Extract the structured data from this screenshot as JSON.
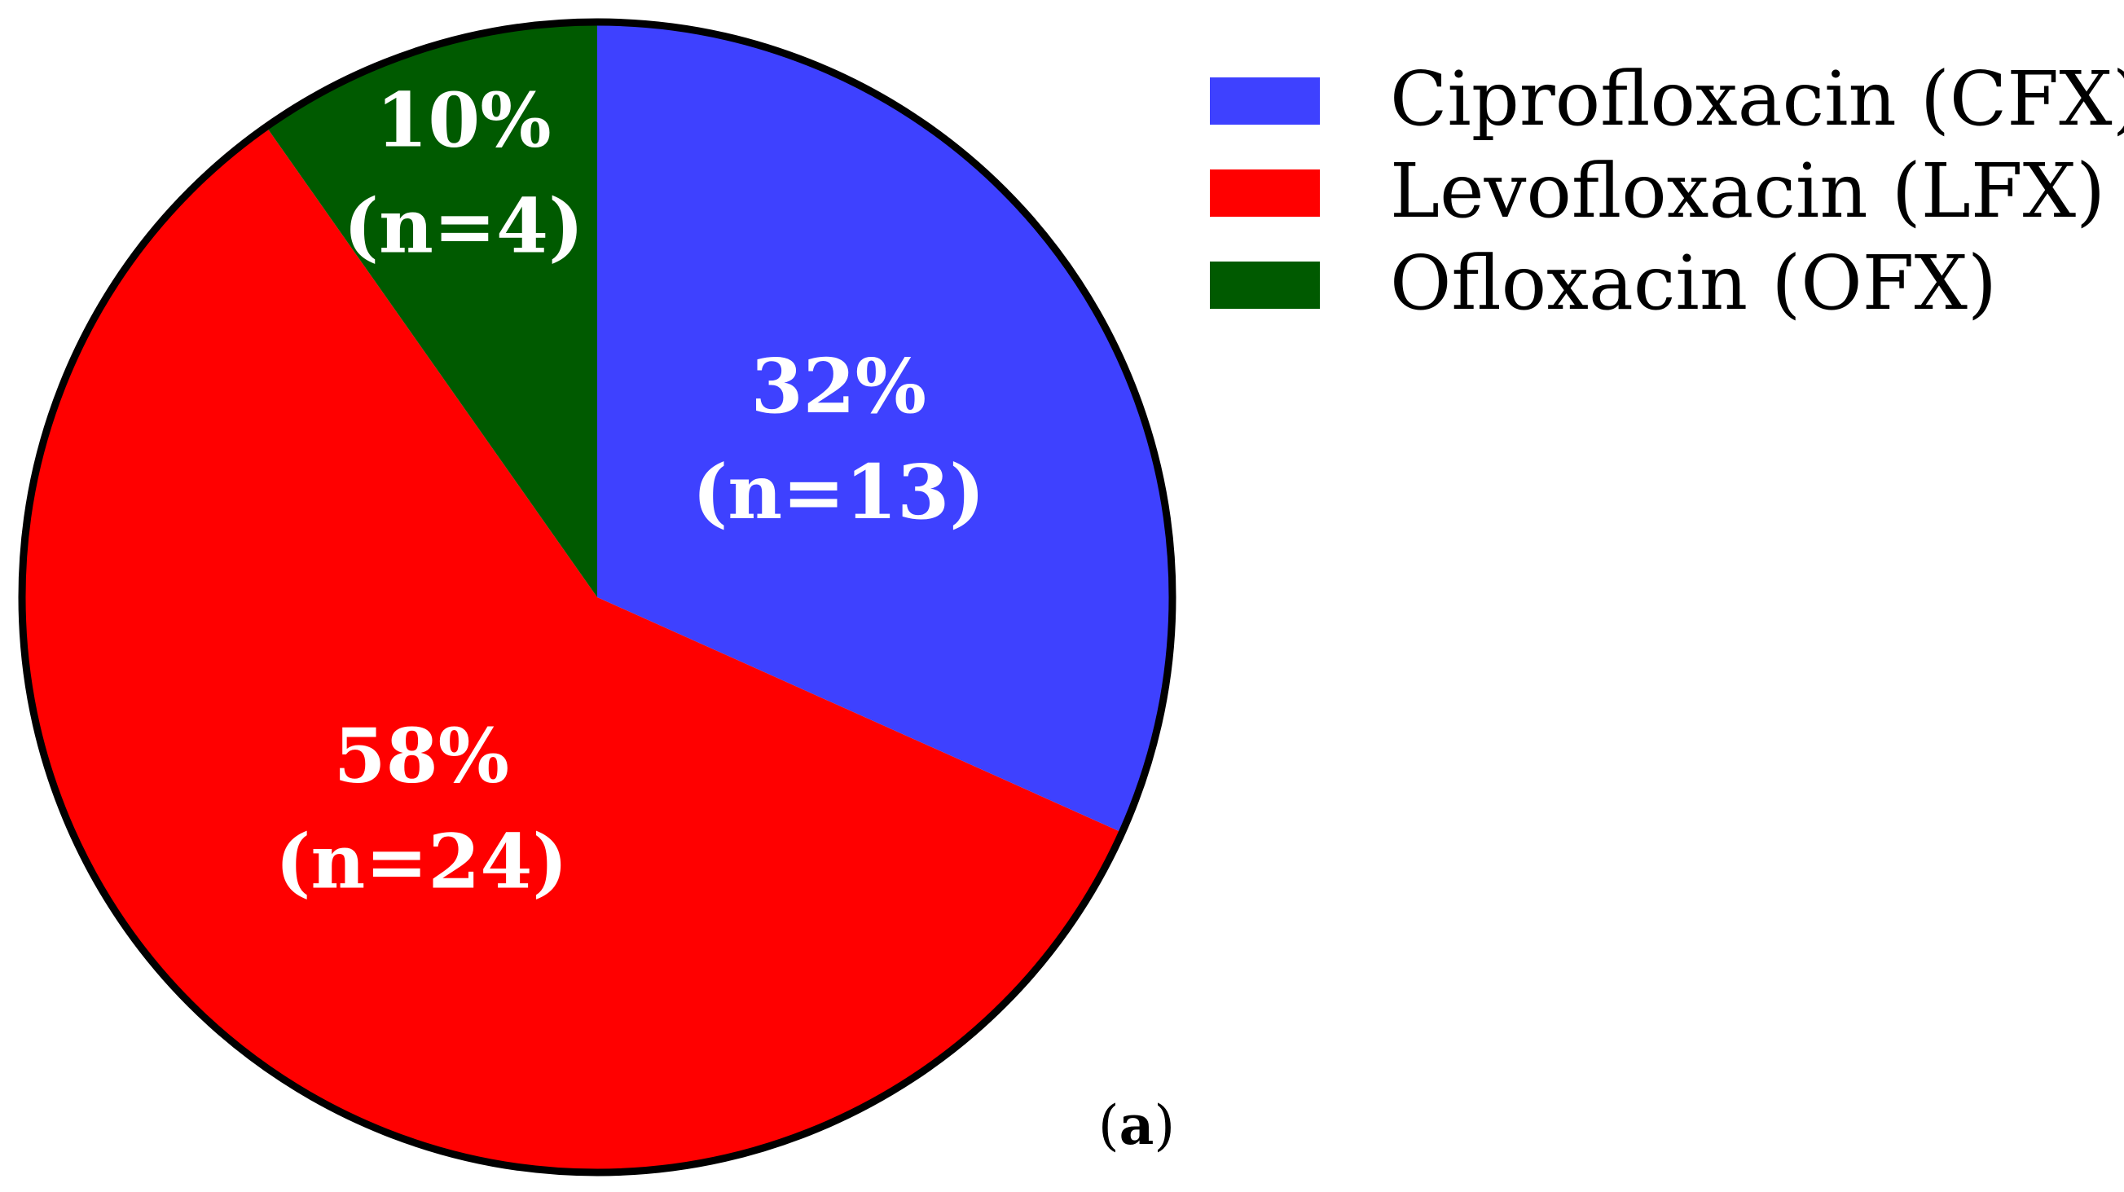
{
  "chart_data": {
    "type": "pie",
    "panel_label_prefix": "(",
    "panel_label_letter": "a",
    "panel_label_suffix": ")",
    "legend_position": "top-right",
    "start_angle_deg": 0,
    "direction": "clockwise",
    "slices": [
      {
        "name": "Ciprofloxacin (CFX)",
        "value": 13,
        "percent_label": "32%",
        "count_label": "(n=13)",
        "color": "#3e41ff"
      },
      {
        "name": "Levofloxacin (LFX)",
        "value": 24,
        "percent_label": "58%",
        "count_label": "(n=24)",
        "color": "#ff0000"
      },
      {
        "name": "Ofloxacin (OFX)",
        "value": 4,
        "percent_label": "10%",
        "count_label": "(n=4)",
        "color": "#005a00"
      }
    ]
  }
}
